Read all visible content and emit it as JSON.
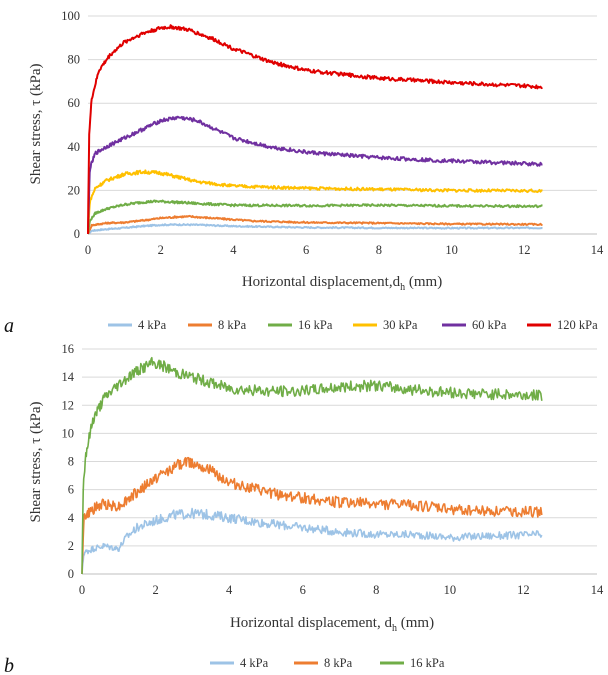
{
  "chart_data": [
    {
      "type": "line",
      "panel_label": "a",
      "xlabel": "Horizontal displacement,d",
      "xlabel_sub": "h",
      "xlabel_unit": " (mm)",
      "ylabel": "Shear stress, τ (kPa)",
      "xlim": [
        0,
        14
      ],
      "ylim": [
        0,
        100
      ],
      "x_ticks": [
        "0",
        "2",
        "4",
        "6",
        "8",
        "10",
        "12",
        "14"
      ],
      "y_ticks": [
        "0",
        "20",
        "40",
        "60",
        "80",
        "100"
      ],
      "legend_position": "bottom",
      "series": [
        {
          "name": "4 kPa",
          "color": "#9dc3e6",
          "x": [
            0,
            0.1,
            0.5,
            1.0,
            1.5,
            2.0,
            2.5,
            3.0,
            4.0,
            6.0,
            8.0,
            10.0,
            12.5
          ],
          "y": [
            0,
            1.5,
            2.2,
            2.8,
            3.6,
            4.2,
            4.3,
            4.2,
            3.6,
            3.0,
            2.8,
            2.7,
            2.8
          ]
        },
        {
          "name": "8 kPa",
          "color": "#ed7d31",
          "x": [
            0,
            0.1,
            0.5,
            1.0,
            1.5,
            2.0,
            2.5,
            2.8,
            3.5,
            4.5,
            6.0,
            8.0,
            10.0,
            12.5
          ],
          "y": [
            0,
            4.0,
            5.0,
            5.3,
            6.2,
            7.3,
            7.9,
            8.0,
            7.2,
            6.0,
            5.3,
            5.0,
            4.6,
            4.4
          ]
        },
        {
          "name": "16 kPa",
          "color": "#70ad47",
          "x": [
            0,
            0.05,
            0.2,
            0.5,
            1.0,
            1.5,
            1.9,
            2.3,
            3.0,
            4.0,
            6.0,
            8.0,
            10.0,
            12.5
          ],
          "y": [
            0,
            6.0,
            9.5,
            11.5,
            13.5,
            14.6,
            15.0,
            14.7,
            14.0,
            13.2,
            13.0,
            13.2,
            12.9,
            12.7
          ]
        },
        {
          "name": "30 kPa",
          "color": "#ffc000",
          "x": [
            0,
            0.05,
            0.2,
            0.5,
            1.0,
            1.5,
            2.0,
            2.5,
            3.0,
            4.0,
            6.0,
            8.0,
            10.0,
            12.5
          ],
          "y": [
            0,
            15.0,
            21.0,
            24.5,
            27.5,
            28.5,
            28.0,
            26.0,
            24.0,
            22.0,
            21.0,
            20.5,
            20.0,
            19.8
          ]
        },
        {
          "name": "60 kPa",
          "color": "#7030a0",
          "x": [
            0,
            0.05,
            0.2,
            0.5,
            1.0,
            1.5,
            2.0,
            2.5,
            3.0,
            3.5,
            4.0,
            5.0,
            6.0,
            8.0,
            10.0,
            12.5
          ],
          "y": [
            0,
            30.0,
            37.0,
            40.0,
            44.0,
            48.0,
            52.0,
            53.5,
            52.0,
            48.0,
            44.0,
            40.0,
            37.5,
            35.0,
            33.5,
            32.0
          ]
        },
        {
          "name": "120 kPa",
          "color": "#e00000",
          "x": [
            0,
            0.03,
            0.1,
            0.3,
            0.6,
            1.0,
            1.5,
            2.0,
            2.3,
            2.8,
            3.5,
            4.0,
            5.0,
            6.0,
            8.0,
            10.0,
            12.5
          ],
          "y": [
            0,
            45.0,
            62.0,
            75.0,
            82.0,
            88.0,
            92.0,
            94.5,
            95.0,
            93.5,
            89.0,
            85.0,
            79.0,
            75.0,
            71.5,
            69.5,
            67.5
          ]
        }
      ]
    },
    {
      "type": "line",
      "panel_label": "b",
      "xlabel": "Horizontal displacement, d",
      "xlabel_sub": "h",
      "xlabel_unit": " (mm)",
      "ylabel": "Shear stress, τ (kPa)",
      "xlim": [
        0,
        14
      ],
      "ylim": [
        0,
        16
      ],
      "x_ticks": [
        "0",
        "2",
        "4",
        "6",
        "8",
        "10",
        "12",
        "14"
      ],
      "y_ticks": [
        "0",
        "2",
        "4",
        "6",
        "8",
        "10",
        "12",
        "14",
        "16"
      ],
      "legend_position": "bottom",
      "series": [
        {
          "name": "4 kPa",
          "color": "#9dc3e6",
          "x": [
            0,
            0.05,
            0.3,
            0.6,
            1.0,
            1.2,
            1.5,
            2.0,
            2.5,
            3.0,
            3.5,
            4.0,
            5.0,
            6.0,
            7.0,
            8.0,
            9.0,
            10.0,
            11.0,
            12.5
          ],
          "y": [
            0,
            1.5,
            1.8,
            2.0,
            1.8,
            2.6,
            3.3,
            3.8,
            4.2,
            4.3,
            4.2,
            4.0,
            3.6,
            3.3,
            3.0,
            2.8,
            2.8,
            2.6,
            2.7,
            2.8
          ]
        },
        {
          "name": "8 kPa",
          "color": "#ed7d31",
          "x": [
            0,
            0.05,
            0.3,
            0.6,
            1.0,
            1.5,
            2.0,
            2.5,
            2.8,
            3.2,
            3.6,
            4.0,
            5.0,
            6.0,
            7.0,
            8.0,
            9.0,
            10.0,
            11.0,
            12.5
          ],
          "y": [
            0,
            4.0,
            4.6,
            5.0,
            4.8,
            5.8,
            6.8,
            7.6,
            8.0,
            7.8,
            7.2,
            6.5,
            5.8,
            5.4,
            5.1,
            5.0,
            4.9,
            4.6,
            4.5,
            4.4
          ]
        },
        {
          "name": "16 kPa",
          "color": "#70ad47",
          "x": [
            0,
            0.03,
            0.1,
            0.3,
            0.6,
            1.0,
            1.4,
            1.9,
            2.2,
            2.6,
            3.0,
            3.5,
            4.0,
            5.0,
            6.0,
            7.0,
            8.0,
            9.0,
            10.0,
            11.0,
            12.5
          ],
          "y": [
            0,
            6.0,
            8.5,
            11.0,
            12.5,
            13.5,
            14.3,
            15.0,
            14.8,
            14.3,
            14.0,
            13.6,
            13.2,
            13.0,
            13.0,
            13.3,
            13.4,
            13.1,
            12.9,
            12.8,
            12.7
          ]
        }
      ]
    }
  ]
}
